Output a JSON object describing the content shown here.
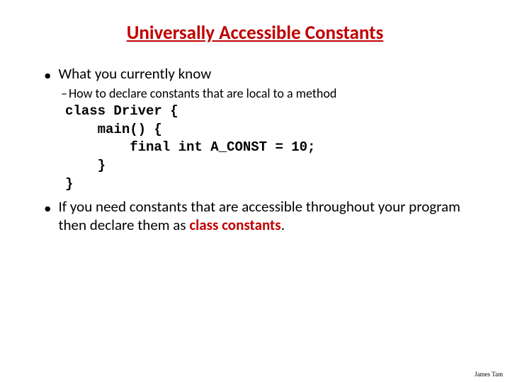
{
  "colors": {
    "title": "#c00000",
    "text": "#000000",
    "highlight": "#c00000",
    "background": "#ffffff"
  },
  "title": "Universally Accessible Constants",
  "bullet1": {
    "text": "What you currently know"
  },
  "bullet1_sub": {
    "text": "How to declare constants that are local to a method"
  },
  "code": {
    "line1": "class Driver {",
    "line2": "    main() {",
    "line3": "        final int A_CONST = 10;",
    "line4": "    }",
    "line5": "}"
  },
  "bullet2": {
    "prefix": "If you need constants that are accessible throughout your program then declare them as ",
    "highlight": "class constants",
    "suffix": "."
  },
  "footer": "James Tam",
  "typography": {
    "title_fontsize": 27,
    "bullet1_fontsize": 21,
    "bullet2_fontsize": 18,
    "code_fontsize": 19,
    "footer_fontsize": 9,
    "title_weight": "bold",
    "code_font": "Courier New",
    "body_font": "Calibri",
    "footer_font": "Times New Roman"
  }
}
